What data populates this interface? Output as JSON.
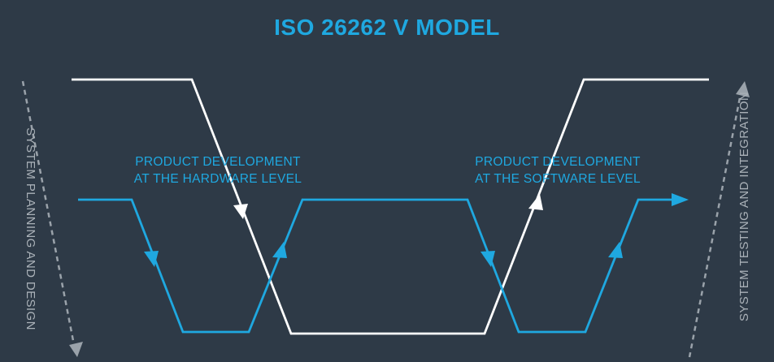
{
  "title": "ISO 26262 V MODEL",
  "labels": {
    "hardware_line1": "PRODUCT DEVELOPMENT",
    "hardware_line2": "AT THE HARDWARE LEVEL",
    "software_line1": "PRODUCT DEVELOPMENT",
    "software_line2": "AT THE SOFTWARE LEVEL"
  },
  "side_labels": {
    "left": "SYSTEM PLANNING AND DESIGN",
    "right": "SYSTEM TESTING AND INTEGRATION"
  },
  "colors": {
    "background": "#2e3a47",
    "accent": "#1fa8e0",
    "system_line": "#ffffff",
    "side_arrow": "#9aa2aa"
  }
}
